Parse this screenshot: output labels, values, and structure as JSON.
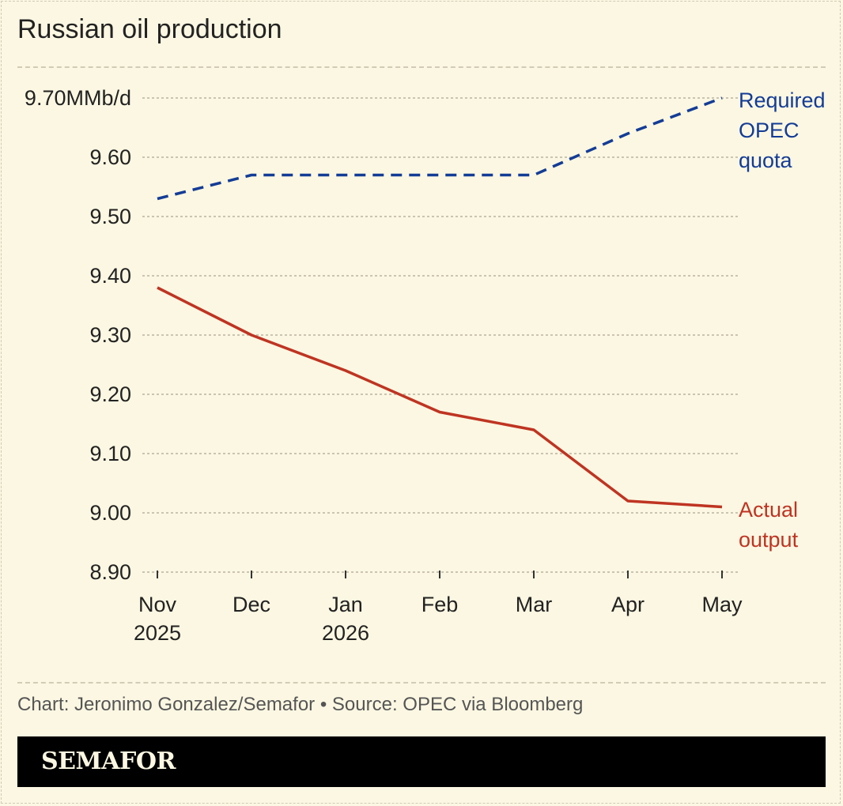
{
  "title": "Russian oil production",
  "footer": {
    "source": "Chart: Jeronimo Gonzalez/Semafor • Source: OPEC via Bloomberg",
    "brand": "SEMAFOR"
  },
  "colors": {
    "background": "#fbf7e2",
    "quota": "#143c96",
    "actual": "#bf3422",
    "brand_bar": "#000000"
  },
  "chart_data": {
    "type": "line",
    "title": "Russian oil production",
    "categories": [
      [
        "Nov",
        "2025"
      ],
      [
        "Dec"
      ],
      [
        "Jan",
        "2026"
      ],
      [
        "Feb"
      ],
      [
        "Mar"
      ],
      [
        "Apr"
      ],
      [
        "May"
      ]
    ],
    "ylim": [
      8.9,
      9.7
    ],
    "yticks": [
      {
        "value": 9.7,
        "label": "9.70MMb/d"
      },
      {
        "value": 9.6,
        "label": "9.60"
      },
      {
        "value": 9.5,
        "label": "9.50"
      },
      {
        "value": 9.4,
        "label": "9.40"
      },
      {
        "value": 9.3,
        "label": "9.30"
      },
      {
        "value": 9.2,
        "label": "9.20"
      },
      {
        "value": 9.1,
        "label": "9.10"
      },
      {
        "value": 9.0,
        "label": "9.00"
      },
      {
        "value": 8.9,
        "label": "8.90"
      }
    ],
    "grid": true,
    "series": [
      {
        "name": "Required OPEC quota",
        "label_lines": [
          "Required",
          "OPEC",
          "quota"
        ],
        "style": "dashed",
        "color": "#143c96",
        "values": [
          9.53,
          9.57,
          9.57,
          9.57,
          9.57,
          9.64,
          9.7
        ]
      },
      {
        "name": "Actual output",
        "label_lines": [
          "Actual",
          "output"
        ],
        "style": "solid",
        "color": "#bf3422",
        "values": [
          9.38,
          9.3,
          9.24,
          9.17,
          9.14,
          9.02,
          9.01
        ]
      }
    ]
  }
}
